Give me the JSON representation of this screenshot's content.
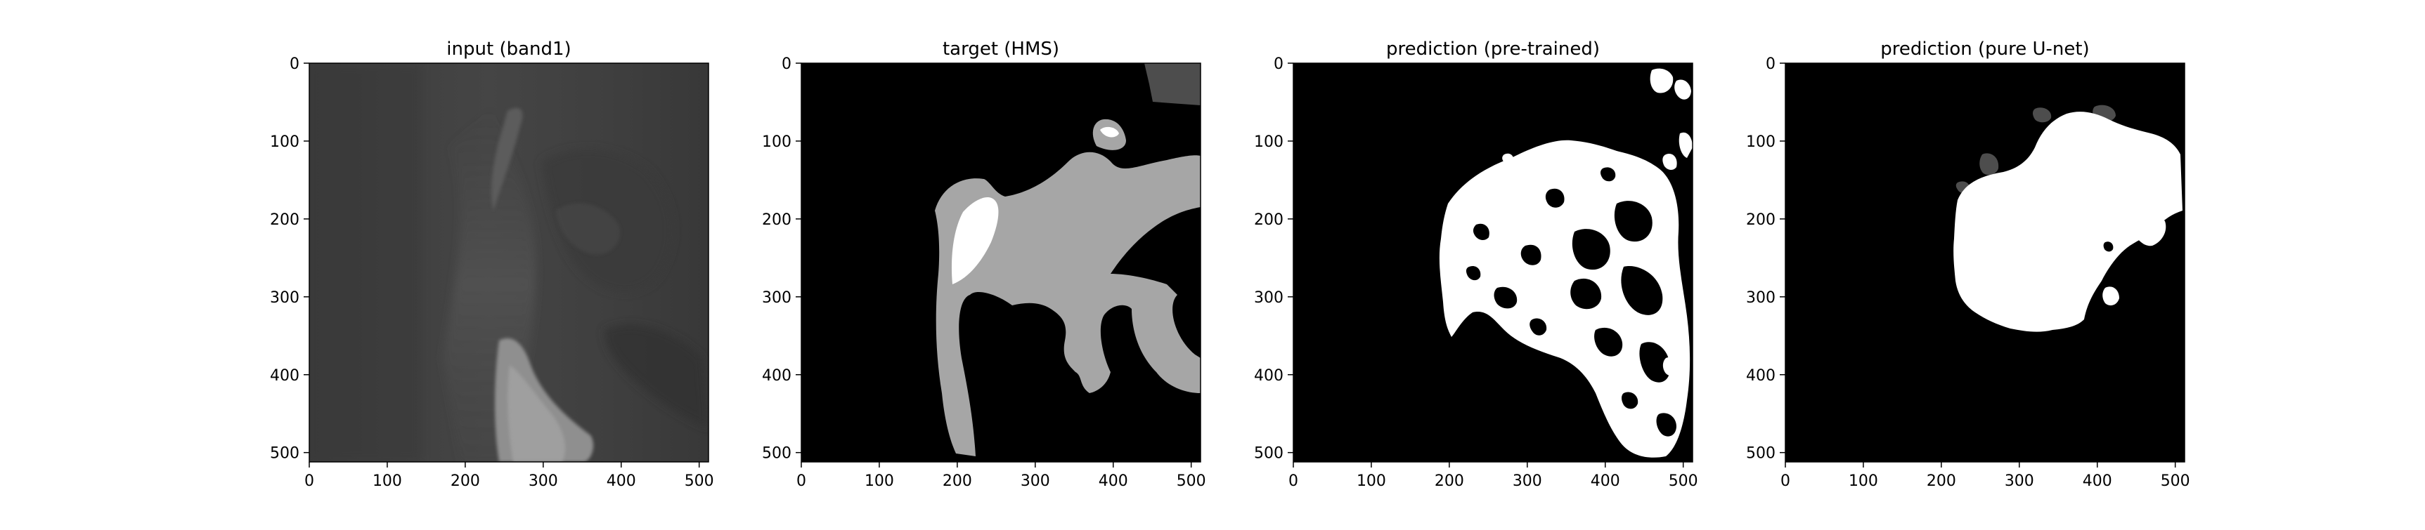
{
  "figure": {
    "background": "#ffffff",
    "frame_color": "#000000",
    "panels": [
      {
        "title": "input (band1)",
        "content": "satellite-grayscale-image",
        "xlim": [
          0,
          512
        ],
        "ylim": [
          512,
          0
        ],
        "x_ticks": [
          0,
          100,
          200,
          300,
          400,
          500
        ],
        "y_ticks": [
          0,
          100,
          200,
          300,
          400,
          500
        ]
      },
      {
        "title": "target (HMS)",
        "content": "segmentation-mask",
        "xlim": [
          0,
          512
        ],
        "ylim": [
          512,
          0
        ],
        "x_ticks": [
          0,
          100,
          200,
          300,
          400,
          500
        ],
        "y_ticks": [
          0,
          100,
          200,
          300,
          400,
          500
        ]
      },
      {
        "title": "prediction (pre-trained)",
        "content": "segmentation-mask",
        "xlim": [
          0,
          512
        ],
        "ylim": [
          512,
          0
        ],
        "x_ticks": [
          0,
          100,
          200,
          300,
          400,
          500
        ],
        "y_ticks": [
          0,
          100,
          200,
          300,
          400,
          500
        ]
      },
      {
        "title": "prediction (pure U-net)",
        "content": "segmentation-mask",
        "xlim": [
          0,
          512
        ],
        "ylim": [
          512,
          0
        ],
        "x_ticks": [
          0,
          100,
          200,
          300,
          400,
          500
        ],
        "y_ticks": [
          0,
          100,
          200,
          300,
          400,
          500
        ]
      }
    ],
    "mask_colors": {
      "background": "#000000",
      "light": "#a6a6a6",
      "medium": "#4d4d4d",
      "heavy": "#ffffff"
    }
  }
}
